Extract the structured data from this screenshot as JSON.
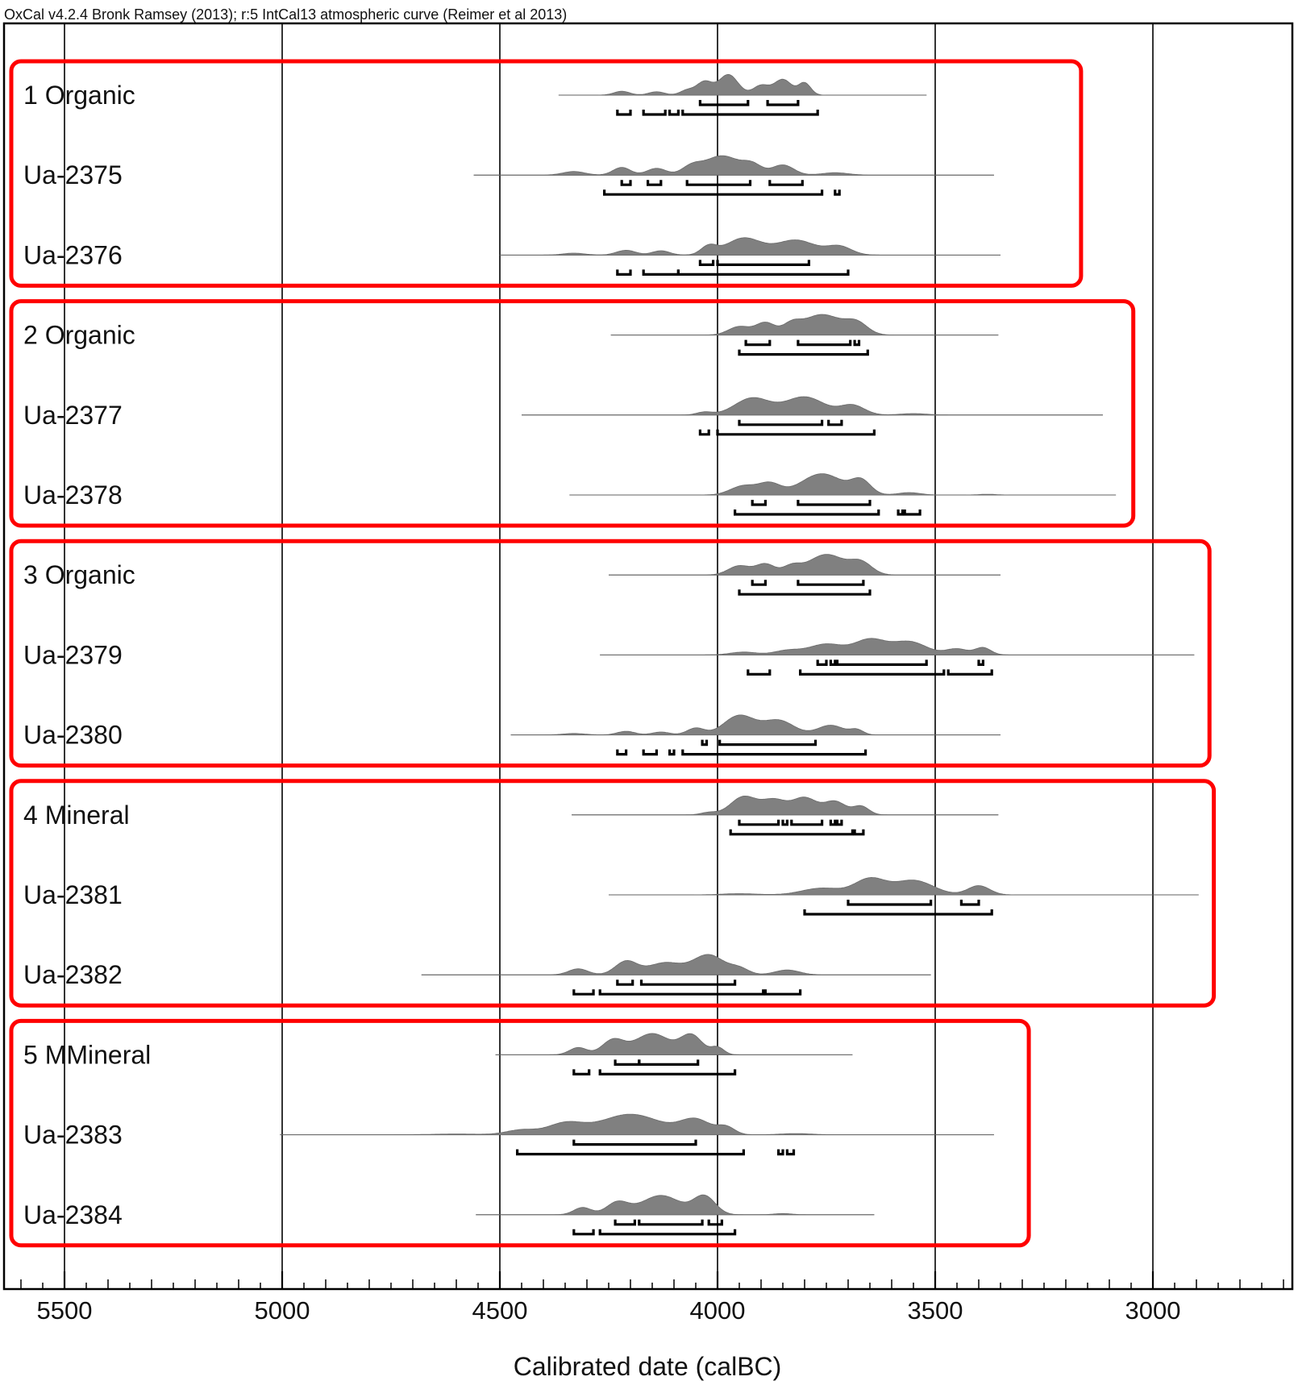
{
  "chart_data": {
    "type": "area",
    "title": "OxCal v4.2.4 Bronk Ramsey (2013); r:5 IntCal13 atmospheric curve (Reimer et al 2013)",
    "xlabel": "Calibrated date (calBC)",
    "ylabel": "",
    "xlim": [
      5640,
      2680
    ],
    "x_ticks": [
      5500,
      5000,
      4500,
      4000,
      3500,
      3000
    ],
    "x_tick_labels": [
      "5500",
      "5000",
      "4500",
      "4000",
      "3500",
      "3000"
    ],
    "grid": true,
    "groups": [
      {
        "box_x_end": 3165,
        "rows": [
          {
            "label": "1 Organic",
            "range": [
              4365,
              3520
            ],
            "peaks": [
              [
                4220,
                0.16,
                18
              ],
              [
                4140,
                0.14,
                18
              ],
              [
                4070,
                0.2,
                16
              ],
              [
                4030,
                0.55,
                18
              ],
              [
                3975,
                0.85,
                22
              ],
              [
                3900,
                0.4,
                18
              ],
              [
                3850,
                0.65,
                20
              ],
              [
                3800,
                0.5,
                14
              ]
            ],
            "r68": [
              [
                4040,
                3930
              ],
              [
                3885,
                3815
              ]
            ],
            "r95": [
              [
                4230,
                4200
              ],
              [
                4170,
                4120
              ],
              [
                4110,
                4090
              ],
              [
                4080,
                3770
              ]
            ]
          },
          {
            "label": "Ua-2375",
            "range": [
              4560,
              3365
            ],
            "peaks": [
              [
                4330,
                0.15,
                25
              ],
              [
                4220,
                0.32,
                20
              ],
              [
                4140,
                0.28,
                22
              ],
              [
                4060,
                0.32,
                22
              ],
              [
                3990,
                0.8,
                40
              ],
              [
                3920,
                0.38,
                22
              ],
              [
                3850,
                0.42,
                25
              ],
              [
                3730,
                0.1,
                30
              ]
            ],
            "r68": [
              [
                4220,
                4200
              ],
              [
                4160,
                4130
              ],
              [
                4070,
                3925
              ],
              [
                3880,
                3805
              ]
            ],
            "r95": [
              [
                4260,
                3760
              ],
              [
                3730,
                3720
              ]
            ]
          },
          {
            "label": "Ua-2376",
            "range": [
              4500,
              3350
            ],
            "peaks": [
              [
                4330,
                0.08,
                25
              ],
              [
                4210,
                0.2,
                22
              ],
              [
                4130,
                0.18,
                20
              ],
              [
                4020,
                0.35,
                18
              ],
              [
                3940,
                0.7,
                40
              ],
              [
                3820,
                0.62,
                45
              ],
              [
                3720,
                0.35,
                28
              ]
            ],
            "r68": [
              [
                4040,
                4010
              ],
              [
                4000,
                3790
              ]
            ],
            "r95": [
              [
                4230,
                4200
              ],
              [
                4170,
                4090
              ],
              [
                4090,
                3700
              ]
            ]
          }
        ]
      },
      {
        "box_x_end": 3045,
        "rows": [
          {
            "label": "2 Organic",
            "range": [
              4245,
              3355
            ],
            "peaks": [
              [
                3950,
                0.35,
                25
              ],
              [
                3890,
                0.5,
                22
              ],
              [
                3830,
                0.35,
                20
              ],
              [
                3760,
                0.85,
                45
              ],
              [
                3680,
                0.45,
                25
              ]
            ],
            "r68": [
              [
                3935,
                3880
              ],
              [
                3815,
                3695
              ],
              [
                3685,
                3675
              ]
            ],
            "r95": [
              [
                3950,
                3655
              ]
            ]
          },
          {
            "label": "Ua-2377",
            "range": [
              4450,
              3115
            ],
            "peaks": [
              [
                4030,
                0.12,
                18
              ],
              [
                3920,
                0.7,
                40
              ],
              [
                3800,
                0.75,
                45
              ],
              [
                3690,
                0.4,
                28
              ],
              [
                3550,
                0.06,
                30
              ]
            ],
            "r68": [
              [
                3950,
                3760
              ],
              [
                3745,
                3715
              ]
            ],
            "r95": [
              [
                4040,
                4020
              ],
              [
                4000,
                3640
              ]
            ]
          },
          {
            "label": "Ua-2378",
            "range": [
              4340,
              3085
            ],
            "peaks": [
              [
                3940,
                0.38,
                30
              ],
              [
                3880,
                0.45,
                25
              ],
              [
                3760,
                0.88,
                48
              ],
              [
                3670,
                0.55,
                22
              ],
              [
                3560,
                0.1,
                25
              ],
              [
                3380,
                0.03,
                20
              ]
            ],
            "r68": [
              [
                3920,
                3890
              ],
              [
                3815,
                3650
              ]
            ],
            "r95": [
              [
                3960,
                3630
              ],
              [
                3585,
                3575
              ],
              [
                3570,
                3535
              ]
            ]
          }
        ]
      },
      {
        "box_x_end": 2870,
        "rows": [
          {
            "label": "3 Organic",
            "range": [
              4250,
              3350
            ],
            "peaks": [
              [
                3950,
                0.38,
                25
              ],
              [
                3890,
                0.45,
                22
              ],
              [
                3830,
                0.32,
                20
              ],
              [
                3750,
                0.85,
                42
              ],
              [
                3670,
                0.48,
                25
              ]
            ],
            "r68": [
              [
                3920,
                3890
              ],
              [
                3815,
                3665
              ]
            ],
            "r95": [
              [
                3950,
                3650
              ]
            ]
          },
          {
            "label": "Ua-2379",
            "range": [
              4270,
              2905
            ],
            "peaks": [
              [
                3940,
                0.12,
                30
              ],
              [
                3840,
                0.18,
                30
              ],
              [
                3750,
                0.45,
                40
              ],
              [
                3650,
                0.62,
                35
              ],
              [
                3560,
                0.55,
                40
              ],
              [
                3450,
                0.25,
                25
              ],
              [
                3390,
                0.3,
                18
              ]
            ],
            "r68": [
              [
                3770,
                3750
              ],
              [
                3740,
                3730
              ],
              [
                3725,
                3520
              ],
              [
                3400,
                3390
              ]
            ],
            "r95": [
              [
                3930,
                3880
              ],
              [
                3810,
                3480
              ],
              [
                3470,
                3370
              ]
            ]
          },
          {
            "label": "Ua-2380",
            "range": [
              4475,
              3350
            ],
            "peaks": [
              [
                4330,
                0.06,
                25
              ],
              [
                4210,
                0.15,
                20
              ],
              [
                4130,
                0.12,
                20
              ],
              [
                4050,
                0.28,
                20
              ],
              [
                3950,
                0.8,
                35
              ],
              [
                3860,
                0.6,
                35
              ],
              [
                3740,
                0.4,
                30
              ],
              [
                3680,
                0.2,
                15
              ]
            ],
            "r68": [
              [
                4035,
                4025
              ],
              [
                3995,
                3775
              ]
            ],
            "r95": [
              [
                4230,
                4210
              ],
              [
                4170,
                4140
              ],
              [
                4110,
                4100
              ],
              [
                4080,
                3660
              ]
            ]
          }
        ]
      },
      {
        "box_x_end": 2860,
        "rows": [
          {
            "label": "4 Mineral",
            "range": [
              4335,
              3355
            ],
            "peaks": [
              [
                4020,
                0.1,
                18
              ],
              [
                3940,
                0.75,
                30
              ],
              [
                3870,
                0.6,
                28
              ],
              [
                3800,
                0.7,
                28
              ],
              [
                3730,
                0.55,
                25
              ],
              [
                3670,
                0.35,
                18
              ]
            ],
            "r68": [
              [
                3950,
                3860
              ],
              [
                3850,
                3840
              ],
              [
                3830,
                3760
              ],
              [
                3740,
                3730
              ],
              [
                3725,
                3715
              ]
            ],
            "r95": [
              [
                3970,
                3690
              ],
              [
                3685,
                3665
              ]
            ]
          },
          {
            "label": "Ua-2381",
            "range": [
              4250,
              2895
            ],
            "peaks": [
              [
                3950,
                0.05,
                40
              ],
              [
                3760,
                0.28,
                45
              ],
              [
                3650,
                0.65,
                35
              ],
              [
                3550,
                0.6,
                45
              ],
              [
                3400,
                0.38,
                25
              ]
            ],
            "r68": [
              [
                3700,
                3510
              ],
              [
                3440,
                3400
              ]
            ],
            "r95": [
              [
                3800,
                3370
              ]
            ]
          },
          {
            "label": "Ua-2382",
            "range": [
              4680,
              3510
            ],
            "peaks": [
              [
                4320,
                0.25,
                22
              ],
              [
                4210,
                0.55,
                25
              ],
              [
                4120,
                0.5,
                40
              ],
              [
                4020,
                0.82,
                35
              ],
              [
                3950,
                0.25,
                22
              ],
              [
                3840,
                0.2,
                28
              ]
            ],
            "r68": [
              [
                4230,
                4195
              ],
              [
                4175,
                3960
              ]
            ],
            "r95": [
              [
                4330,
                4285
              ],
              [
                4270,
                3895
              ],
              [
                3890,
                3810
              ]
            ]
          }
        ]
      },
      {
        "box_x_end": 3285,
        "rows": [
          {
            "label": "5 MMineral",
            "range": [
              4510,
              3690
            ],
            "peaks": [
              [
                4320,
                0.3,
                20
              ],
              [
                4240,
                0.6,
                25
              ],
              [
                4150,
                0.88,
                40
              ],
              [
                4060,
                0.8,
                25
              ],
              [
                4000,
                0.3,
                15
              ]
            ],
            "r68": [
              [
                4235,
                4180
              ],
              [
                4180,
                4045
              ]
            ],
            "r95": [
              [
                4330,
                4295
              ],
              [
                4270,
                3960
              ]
            ]
          },
          {
            "label": "Ua-2383",
            "range": [
              5005,
              3365
            ],
            "peaks": [
              [
                4600,
                0.03,
                60
              ],
              [
                4450,
                0.2,
                35
              ],
              [
                4350,
                0.45,
                40
              ],
              [
                4200,
                0.85,
                70
              ],
              [
                4050,
                0.6,
                35
              ],
              [
                3980,
                0.3,
                20
              ],
              [
                3820,
                0.05,
                35
              ]
            ],
            "r68": [
              [
                4330,
                4050
              ]
            ],
            "r95": [
              [
                4460,
                3940
              ],
              [
                3860,
                3850
              ],
              [
                3840,
                3825
              ]
            ]
          },
          {
            "label": "Ua-2384",
            "range": [
              4555,
              3640
            ],
            "peaks": [
              [
                4310,
                0.3,
                20
              ],
              [
                4230,
                0.5,
                25
              ],
              [
                4130,
                0.8,
                45
              ],
              [
                4030,
                0.75,
                25
              ],
              [
                3850,
                0.05,
                20
              ]
            ],
            "r68": [
              [
                4235,
                4190
              ],
              [
                4180,
                4035
              ],
              [
                4020,
                3990
              ]
            ],
            "r95": [
              [
                4330,
                4285
              ],
              [
                4270,
                3960
              ]
            ]
          }
        ]
      }
    ]
  }
}
